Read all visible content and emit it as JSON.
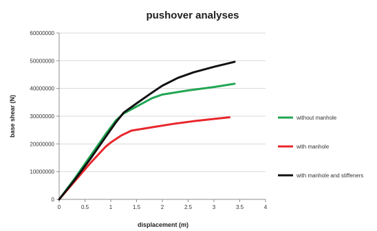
{
  "chart_data": {
    "type": "line",
    "title": "pushover analyses",
    "xlabel": "displacement (m)",
    "ylabel": "base shear (N)",
    "xlim": [
      0,
      4
    ],
    "ylim": [
      0,
      60000000
    ],
    "x_ticks": [
      0,
      0.5,
      1,
      1.5,
      2,
      2.5,
      3,
      3.5,
      4
    ],
    "x_tick_labels": [
      "0",
      "0.5",
      "1",
      "1.5",
      "2",
      "2.5",
      "3",
      "3.5",
      "4"
    ],
    "y_ticks": [
      0,
      10000000,
      20000000,
      30000000,
      40000000,
      50000000,
      60000000
    ],
    "y_tick_labels": [
      "0",
      "10000000",
      "20000000",
      "30000000",
      "40000000",
      "50000000",
      "60000000"
    ],
    "grid": "horizontal",
    "legend_position": "right",
    "series": [
      {
        "name": "without manhole",
        "color": "#1fa552",
        "x": [
          0,
          0.3,
          0.6,
          0.9,
          1.1,
          1.25,
          1.5,
          1.8,
          2.0,
          2.5,
          3.0,
          3.4
        ],
        "y": [
          0,
          7500000,
          15500000,
          23500000,
          28500000,
          31000000,
          33500000,
          36500000,
          37800000,
          39300000,
          40500000,
          41700000
        ]
      },
      {
        "name": "with manhole",
        "color": "#e8262b",
        "x": [
          0,
          0.3,
          0.6,
          0.9,
          1.0,
          1.2,
          1.4,
          1.8,
          2.2,
          2.6,
          3.0,
          3.3
        ],
        "y": [
          0,
          6500000,
          13000000,
          19000000,
          20500000,
          23000000,
          24800000,
          26000000,
          27200000,
          28200000,
          29000000,
          29600000
        ]
      },
      {
        "name": "with manhole and stiffeners",
        "color": "#111111",
        "x": [
          0,
          0.3,
          0.6,
          0.9,
          1.1,
          1.25,
          1.5,
          1.8,
          2.0,
          2.3,
          2.6,
          3.0,
          3.4
        ],
        "y": [
          0,
          7000000,
          14500000,
          22500000,
          27800000,
          31300000,
          34600000,
          38500000,
          41000000,
          43800000,
          45800000,
          47800000,
          49600000
        ]
      }
    ]
  }
}
